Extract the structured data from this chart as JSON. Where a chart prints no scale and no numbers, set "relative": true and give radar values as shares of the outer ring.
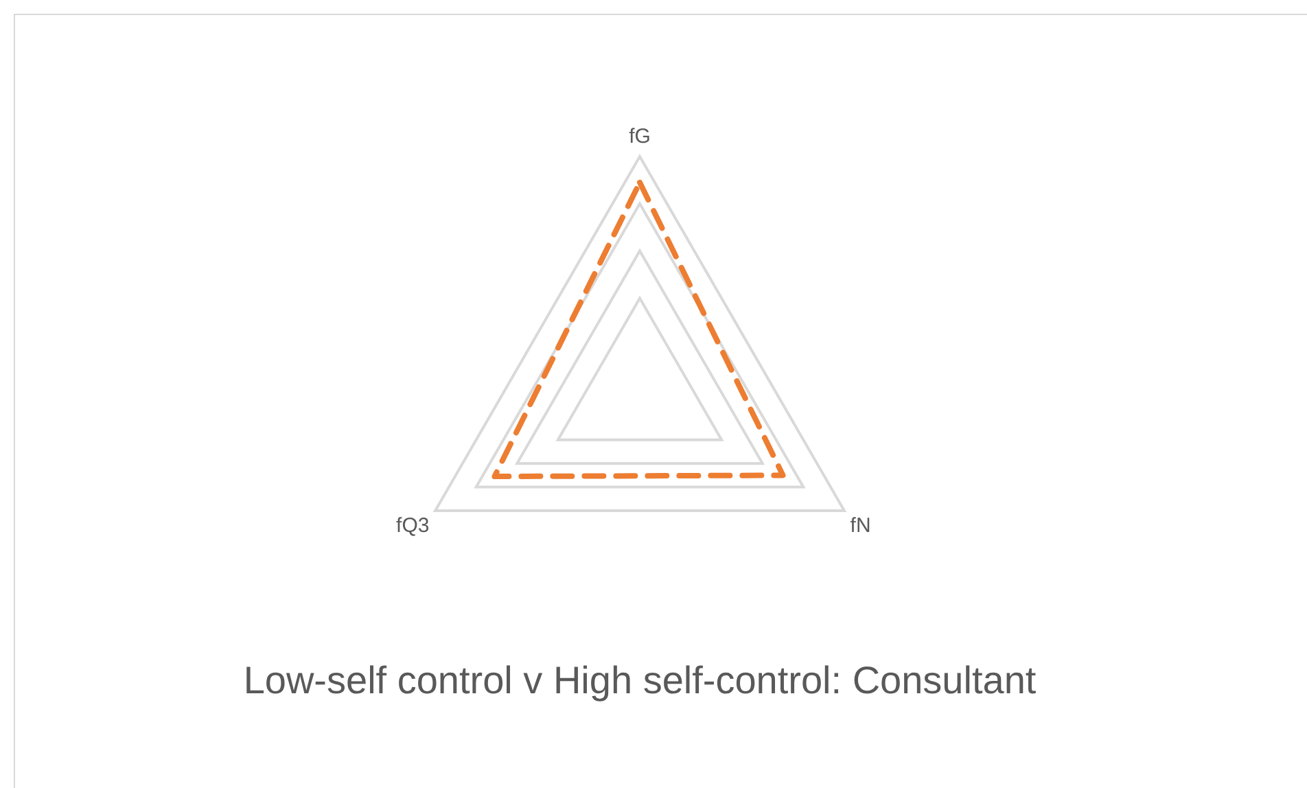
{
  "chart_data": {
    "type": "radar",
    "title": "Low-self control v High self-control: Consultant",
    "categories": [
      "fG",
      "fN",
      "fQ3"
    ],
    "relative": true,
    "series": [
      {
        "color": "#ed7d31",
        "values": [
          0.89,
          0.7,
          0.71
        ]
      }
    ],
    "line_style": "dashed",
    "marker": "none",
    "grid": true,
    "legend": false
  }
}
